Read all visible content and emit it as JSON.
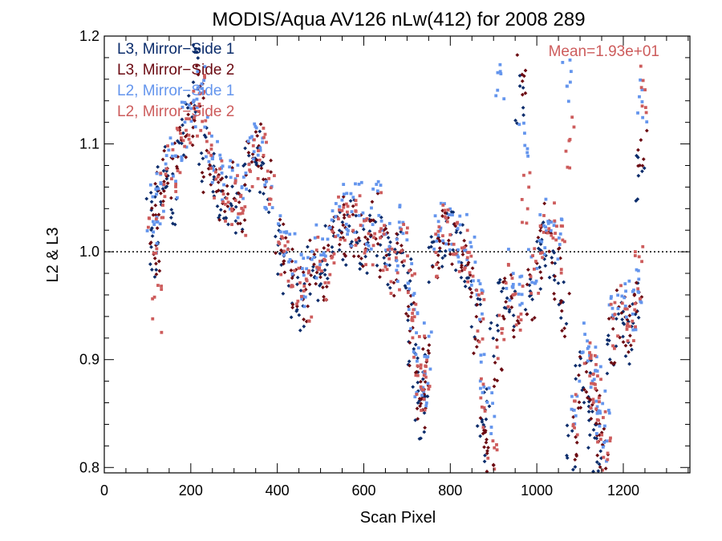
{
  "chart_data": {
    "type": "scatter",
    "title": "MODIS/Aqua AV126 nLw(412) for 2008 289",
    "xlabel": "Scan Pixel",
    "ylabel": "L2 & L3",
    "xlim": [
      0,
      1354
    ],
    "ylim": [
      0.795,
      1.2
    ],
    "xticks": [
      0,
      200,
      400,
      600,
      800,
      1000,
      1200
    ],
    "xtick_labels": [
      "0",
      "200",
      "400",
      "600",
      "800",
      "1000",
      "1200"
    ],
    "yticks": [
      0.8,
      0.9,
      1.0,
      1.1,
      1.2
    ],
    "ytick_labels": [
      "0.8",
      "0.9",
      "1.0",
      "1.1",
      "1.2"
    ],
    "reference_line": 1.0,
    "annotation": "Mean=1.93e+01",
    "annotation_color": "#CD5C5C",
    "legend_position": "top-left",
    "grid": false,
    "series": [
      {
        "name": "L3, Mirror−Side 1",
        "color": "#0B2C6B",
        "marker": "diamond",
        "points": [
          [
            105,
            1.03
          ],
          [
            115,
            0.99
          ],
          [
            125,
            1.06
          ],
          [
            140,
            1.08
          ],
          [
            160,
            1.05
          ],
          [
            180,
            1.1
          ],
          [
            200,
            1.13
          ],
          [
            215,
            1.17
          ],
          [
            230,
            1.09
          ],
          [
            250,
            1.07
          ],
          [
            270,
            1.04
          ],
          [
            290,
            1.05
          ],
          [
            310,
            1.03
          ],
          [
            330,
            1.08
          ],
          [
            350,
            1.09
          ],
          [
            370,
            1.06
          ],
          [
            400,
            1.0
          ],
          [
            420,
            0.98
          ],
          [
            440,
            0.96
          ],
          [
            460,
            0.95
          ],
          [
            480,
            0.98
          ],
          [
            500,
            0.97
          ],
          [
            520,
            1.0
          ],
          [
            540,
            1.02
          ],
          [
            560,
            1.01
          ],
          [
            580,
            1.03
          ],
          [
            600,
            1.0
          ],
          [
            620,
            1.02
          ],
          [
            640,
            1.01
          ],
          [
            660,
            0.99
          ],
          [
            680,
            1.0
          ],
          [
            700,
            0.97
          ],
          [
            710,
            0.92
          ],
          [
            720,
            0.88
          ],
          [
            730,
            0.85
          ],
          [
            740,
            0.89
          ],
          [
            760,
            0.99
          ],
          [
            780,
            1.01
          ],
          [
            800,
            1.02
          ],
          [
            820,
            1.0
          ],
          [
            840,
            0.98
          ],
          [
            860,
            0.94
          ],
          [
            870,
            0.83
          ],
          [
            880,
            0.85
          ],
          [
            900,
            0.92
          ],
          [
            920,
            0.97
          ],
          [
            940,
            0.95
          ],
          [
            960,
            1.14
          ],
          [
            980,
            0.97
          ],
          [
            1000,
            0.99
          ],
          [
            1020,
            1.01
          ],
          [
            1040,
            0.99
          ],
          [
            1060,
            0.95
          ],
          [
            1080,
            0.82
          ],
          [
            1100,
            0.89
          ],
          [
            1120,
            0.88
          ],
          [
            1130,
            0.84
          ],
          [
            1140,
            0.82
          ],
          [
            1150,
            0.8
          ],
          [
            1170,
            0.91
          ],
          [
            1190,
            0.93
          ],
          [
            1210,
            0.92
          ],
          [
            1230,
            0.95
          ],
          [
            1240,
            1.07
          ]
        ]
      },
      {
        "name": "L3, Mirror−Side 2",
        "color": "#6B0A12",
        "marker": "diamond",
        "points": [
          [
            108,
            1.02
          ],
          [
            118,
            1.0
          ],
          [
            128,
            1.05
          ],
          [
            145,
            1.07
          ],
          [
            165,
            1.08
          ],
          [
            185,
            1.11
          ],
          [
            205,
            1.12
          ],
          [
            220,
            1.15
          ],
          [
            235,
            1.08
          ],
          [
            255,
            1.06
          ],
          [
            275,
            1.05
          ],
          [
            295,
            1.06
          ],
          [
            315,
            1.04
          ],
          [
            335,
            1.09
          ],
          [
            355,
            1.1
          ],
          [
            375,
            1.07
          ],
          [
            405,
            1.01
          ],
          [
            425,
            0.99
          ],
          [
            445,
            0.97
          ],
          [
            465,
            0.96
          ],
          [
            485,
            0.99
          ],
          [
            505,
            0.98
          ],
          [
            525,
            1.01
          ],
          [
            545,
            1.03
          ],
          [
            565,
            1.02
          ],
          [
            585,
            1.02
          ],
          [
            605,
            1.01
          ],
          [
            625,
            1.03
          ],
          [
            645,
            1.0
          ],
          [
            665,
            0.98
          ],
          [
            685,
            1.01
          ],
          [
            705,
            0.96
          ],
          [
            715,
            0.91
          ],
          [
            725,
            0.87
          ],
          [
            735,
            0.86
          ],
          [
            745,
            0.9
          ],
          [
            765,
            1.0
          ],
          [
            785,
            1.02
          ],
          [
            805,
            1.01
          ],
          [
            825,
            0.99
          ],
          [
            845,
            0.97
          ],
          [
            865,
            0.93
          ],
          [
            875,
            0.84
          ],
          [
            890,
            0.81
          ],
          [
            910,
            0.9
          ],
          [
            930,
            0.96
          ],
          [
            950,
            0.94
          ],
          [
            965,
            1.17
          ],
          [
            985,
            0.96
          ],
          [
            1005,
            1.0
          ],
          [
            1025,
            1.02
          ],
          [
            1045,
            0.98
          ],
          [
            1065,
            0.94
          ],
          [
            1085,
            0.83
          ],
          [
            1105,
            0.88
          ],
          [
            1125,
            0.87
          ],
          [
            1135,
            0.85
          ],
          [
            1145,
            0.83
          ],
          [
            1155,
            0.81
          ],
          [
            1175,
            0.92
          ],
          [
            1195,
            0.94
          ],
          [
            1215,
            0.93
          ],
          [
            1235,
            0.96
          ],
          [
            1245,
            1.09
          ]
        ]
      },
      {
        "name": "L2, Mirror−Side 1",
        "color": "#6495ED",
        "marker": "square",
        "points": [
          [
            110,
            1.04
          ],
          [
            120,
            1.01
          ],
          [
            130,
            1.06
          ],
          [
            150,
            1.09
          ],
          [
            170,
            1.07
          ],
          [
            190,
            1.12
          ],
          [
            210,
            1.14
          ],
          [
            225,
            1.16
          ],
          [
            240,
            1.1
          ],
          [
            260,
            1.08
          ],
          [
            280,
            1.06
          ],
          [
            300,
            1.07
          ],
          [
            320,
            1.05
          ],
          [
            340,
            1.1
          ],
          [
            360,
            1.11
          ],
          [
            380,
            1.06
          ],
          [
            410,
            1.02
          ],
          [
            430,
            1.0
          ],
          [
            450,
            0.98
          ],
          [
            470,
            0.97
          ],
          [
            490,
            1.0
          ],
          [
            510,
            0.99
          ],
          [
            530,
            1.02
          ],
          [
            550,
            1.04
          ],
          [
            570,
            1.03
          ],
          [
            590,
            1.04
          ],
          [
            610,
            1.02
          ],
          [
            630,
            1.04
          ],
          [
            650,
            1.01
          ],
          [
            670,
            0.99
          ],
          [
            690,
            1.02
          ],
          [
            708,
            0.97
          ],
          [
            718,
            0.93
          ],
          [
            728,
            0.89
          ],
          [
            738,
            0.88
          ],
          [
            748,
            0.91
          ],
          [
            768,
            1.01
          ],
          [
            788,
            1.03
          ],
          [
            808,
            1.02
          ],
          [
            828,
            1.01
          ],
          [
            848,
            0.99
          ],
          [
            868,
            0.95
          ],
          [
            878,
            0.88
          ],
          [
            895,
            0.85
          ],
          [
            915,
            1.15
          ],
          [
            935,
            0.98
          ],
          [
            955,
            0.96
          ],
          [
            970,
            1.1
          ],
          [
            990,
            0.99
          ],
          [
            1010,
            1.02
          ],
          [
            1030,
            1.04
          ],
          [
            1050,
            1.01
          ],
          [
            1070,
            1.16
          ],
          [
            1090,
            0.86
          ],
          [
            1110,
            0.91
          ],
          [
            1128,
            0.89
          ],
          [
            1138,
            0.87
          ],
          [
            1148,
            0.85
          ],
          [
            1158,
            0.83
          ],
          [
            1178,
            0.94
          ],
          [
            1198,
            0.96
          ],
          [
            1218,
            0.95
          ],
          [
            1238,
            0.97
          ],
          [
            1244,
            1.14
          ]
        ]
      },
      {
        "name": "L2, Mirror−Side 2",
        "color": "#CD5C5C",
        "marker": "square",
        "points": [
          [
            112,
            1.01
          ],
          [
            122,
            0.95
          ],
          [
            132,
            1.05
          ],
          [
            155,
            1.08
          ],
          [
            175,
            1.09
          ],
          [
            195,
            1.1
          ],
          [
            212,
            1.13
          ],
          [
            228,
            1.14
          ],
          [
            245,
            1.09
          ],
          [
            265,
            1.07
          ],
          [
            285,
            1.05
          ],
          [
            305,
            1.06
          ],
          [
            325,
            1.04
          ],
          [
            345,
            1.08
          ],
          [
            365,
            1.09
          ],
          [
            385,
            1.05
          ],
          [
            412,
            1.0
          ],
          [
            432,
            0.99
          ],
          [
            452,
            0.97
          ],
          [
            472,
            0.96
          ],
          [
            492,
            0.99
          ],
          [
            512,
            0.98
          ],
          [
            532,
            1.01
          ],
          [
            552,
            1.03
          ],
          [
            572,
            1.02
          ],
          [
            592,
            1.03
          ],
          [
            612,
            1.01
          ],
          [
            632,
            1.03
          ],
          [
            652,
            1.0
          ],
          [
            672,
            0.98
          ],
          [
            692,
            1.01
          ],
          [
            710,
            0.96
          ],
          [
            720,
            0.92
          ],
          [
            730,
            0.88
          ],
          [
            740,
            0.87
          ],
          [
            750,
            0.9
          ],
          [
            770,
            1.0
          ],
          [
            790,
            1.02
          ],
          [
            810,
            1.01
          ],
          [
            830,
            1.0
          ],
          [
            850,
            0.98
          ],
          [
            870,
            0.94
          ],
          [
            880,
            0.86
          ],
          [
            898,
            0.8
          ],
          [
            918,
            0.92
          ],
          [
            938,
            0.97
          ],
          [
            958,
            0.95
          ],
          [
            975,
            1.05
          ],
          [
            995,
            0.98
          ],
          [
            1015,
            1.01
          ],
          [
            1035,
            1.03
          ],
          [
            1055,
            1.0
          ],
          [
            1075,
            1.1
          ],
          [
            1095,
            0.85
          ],
          [
            1115,
            0.9
          ],
          [
            1130,
            0.88
          ],
          [
            1140,
            0.86
          ],
          [
            1150,
            0.84
          ],
          [
            1160,
            0.82
          ],
          [
            1180,
            0.93
          ],
          [
            1200,
            0.95
          ],
          [
            1220,
            0.94
          ],
          [
            1236,
            0.98
          ],
          [
            1246,
            1.15
          ]
        ]
      }
    ]
  }
}
